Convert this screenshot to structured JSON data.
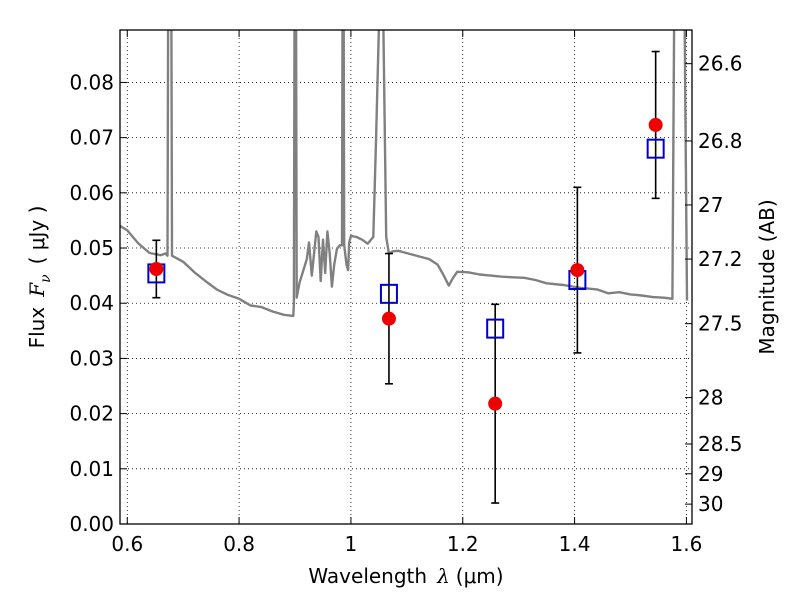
{
  "chart_data": {
    "type": "scatter",
    "xlabel": "Wavelength",
    "xlabel_symbol": "λ",
    "xlabel_unit": "(μm)",
    "ylabel": "Flux",
    "ylabel_symbol": "F",
    "ylabel_subscript": "ν",
    "ylabel_unit": "( μJy )",
    "y2label": "Magnitude (AB)",
    "xlim": [
      0.587,
      1.61
    ],
    "ylim": [
      0.0,
      0.0895
    ],
    "grid": true,
    "xticks": [
      {
        "value": 0.6,
        "label": "0.6"
      },
      {
        "value": 0.8,
        "label": "0.8"
      },
      {
        "value": 1.0,
        "label": "1"
      },
      {
        "value": 1.2,
        "label": "1.2"
      },
      {
        "value": 1.4,
        "label": "1.4"
      },
      {
        "value": 1.6,
        "label": "1.6"
      }
    ],
    "yticks": [
      {
        "value": 0.0,
        "label": "0.00"
      },
      {
        "value": 0.01,
        "label": "0.01"
      },
      {
        "value": 0.02,
        "label": "0.02"
      },
      {
        "value": 0.03,
        "label": "0.03"
      },
      {
        "value": 0.04,
        "label": "0.04"
      },
      {
        "value": 0.05,
        "label": "0.05"
      },
      {
        "value": 0.06,
        "label": "0.06"
      },
      {
        "value": 0.07,
        "label": "0.07"
      },
      {
        "value": 0.08,
        "label": "0.08"
      }
    ],
    "y2ticks": [
      {
        "flux": 0.0834,
        "label": "26.6"
      },
      {
        "flux": 0.0694,
        "label": "26.8"
      },
      {
        "flux": 0.0578,
        "label": "27"
      },
      {
        "flux": 0.048,
        "label": "27.2"
      },
      {
        "flux": 0.0363,
        "label": "27.5"
      },
      {
        "flux": 0.0229,
        "label": "28"
      },
      {
        "flux": 0.0145,
        "label": "28.5"
      },
      {
        "flux": 0.0091,
        "label": "29"
      },
      {
        "flux": 0.0036,
        "label": "30"
      }
    ],
    "series": [
      {
        "kind": "model-spectrum",
        "color": "#808080",
        "points": [
          [
            0.587,
            0.054
          ],
          [
            0.6,
            0.0532
          ],
          [
            0.62,
            0.0508
          ],
          [
            0.64,
            0.0491
          ],
          [
            0.66,
            0.0487
          ],
          [
            0.668,
            0.049
          ],
          [
            0.672,
            0.0486
          ],
          [
            0.673,
            0.09
          ],
          [
            0.679,
            0.09
          ],
          [
            0.68,
            0.0486
          ],
          [
            0.7,
            0.0475
          ],
          [
            0.72,
            0.0456
          ],
          [
            0.74,
            0.044
          ],
          [
            0.76,
            0.0425
          ],
          [
            0.78,
            0.0415
          ],
          [
            0.8,
            0.0408
          ],
          [
            0.82,
            0.0396
          ],
          [
            0.84,
            0.0393
          ],
          [
            0.86,
            0.0385
          ],
          [
            0.88,
            0.0379
          ],
          [
            0.897,
            0.0377
          ],
          [
            0.898,
            0.04
          ],
          [
            0.899,
            0.09
          ],
          [
            0.902,
            0.09
          ],
          [
            0.903,
            0.041
          ],
          [
            0.908,
            0.0437
          ],
          [
            0.915,
            0.046
          ],
          [
            0.921,
            0.048
          ],
          [
            0.925,
            0.051
          ],
          [
            0.93,
            0.045
          ],
          [
            0.935,
            0.05
          ],
          [
            0.938,
            0.053
          ],
          [
            0.942,
            0.052
          ],
          [
            0.946,
            0.044
          ],
          [
            0.95,
            0.0515
          ],
          [
            0.954,
            0.0455
          ],
          [
            0.958,
            0.053
          ],
          [
            0.962,
            0.049
          ],
          [
            0.966,
            0.043
          ],
          [
            0.97,
            0.047
          ],
          [
            0.975,
            0.0498
          ],
          [
            0.98,
            0.0505
          ],
          [
            0.984,
            0.0505
          ],
          [
            0.985,
            0.09
          ],
          [
            0.987,
            0.09
          ],
          [
            0.988,
            0.0505
          ],
          [
            0.992,
            0.047
          ],
          [
            0.995,
            0.046
          ],
          [
            0.997,
            0.051
          ],
          [
            1.0,
            0.0522
          ],
          [
            1.01,
            0.052
          ],
          [
            1.02,
            0.0515
          ],
          [
            1.03,
            0.0508
          ],
          [
            1.04,
            0.052
          ],
          [
            1.045,
            0.07
          ],
          [
            1.05,
            0.09
          ],
          [
            1.058,
            0.09
          ],
          [
            1.063,
            0.052
          ],
          [
            1.068,
            0.049
          ],
          [
            1.075,
            0.0494
          ],
          [
            1.085,
            0.0495
          ],
          [
            1.095,
            0.0492
          ],
          [
            1.11,
            0.0488
          ],
          [
            1.125,
            0.0484
          ],
          [
            1.14,
            0.048
          ],
          [
            1.155,
            0.047
          ],
          [
            1.165,
            0.0452
          ],
          [
            1.175,
            0.0432
          ],
          [
            1.182,
            0.0445
          ],
          [
            1.19,
            0.0457
          ],
          [
            1.21,
            0.0456
          ],
          [
            1.23,
            0.0452
          ],
          [
            1.25,
            0.045
          ],
          [
            1.27,
            0.0448
          ],
          [
            1.29,
            0.0447
          ],
          [
            1.31,
            0.0446
          ],
          [
            1.33,
            0.0442
          ],
          [
            1.35,
            0.0436
          ],
          [
            1.38,
            0.0433
          ],
          [
            1.41,
            0.0428
          ],
          [
            1.44,
            0.0425
          ],
          [
            1.46,
            0.0418
          ],
          [
            1.48,
            0.042
          ],
          [
            1.5,
            0.0416
          ],
          [
            1.52,
            0.0414
          ],
          [
            1.54,
            0.0411
          ],
          [
            1.56,
            0.041
          ],
          [
            1.575,
            0.0408
          ],
          [
            1.578,
            0.09
          ],
          [
            1.597,
            0.09
          ],
          [
            1.601,
            0.0405
          ]
        ]
      },
      {
        "kind": "model-photometry",
        "marker": "open-square",
        "color": "#0000cc",
        "points": [
          {
            "x": 0.652,
            "y": 0.0454
          },
          {
            "x": 1.068,
            "y": 0.0417
          },
          {
            "x": 1.258,
            "y": 0.0354
          },
          {
            "x": 1.405,
            "y": 0.0442
          },
          {
            "x": 1.545,
            "y": 0.068
          }
        ]
      },
      {
        "kind": "observed",
        "marker": "filled-circle",
        "color": "#ee0000",
        "errorbar_color": "#000000",
        "points": [
          {
            "x": 0.652,
            "y": 0.0462,
            "err": 0.0052
          },
          {
            "x": 1.068,
            "y": 0.0372,
            "err": 0.0118
          },
          {
            "x": 1.258,
            "y": 0.0218,
            "err": 0.018
          },
          {
            "x": 1.405,
            "y": 0.046,
            "err": 0.015
          },
          {
            "x": 1.545,
            "y": 0.0723,
            "err": 0.0133
          }
        ]
      }
    ]
  }
}
